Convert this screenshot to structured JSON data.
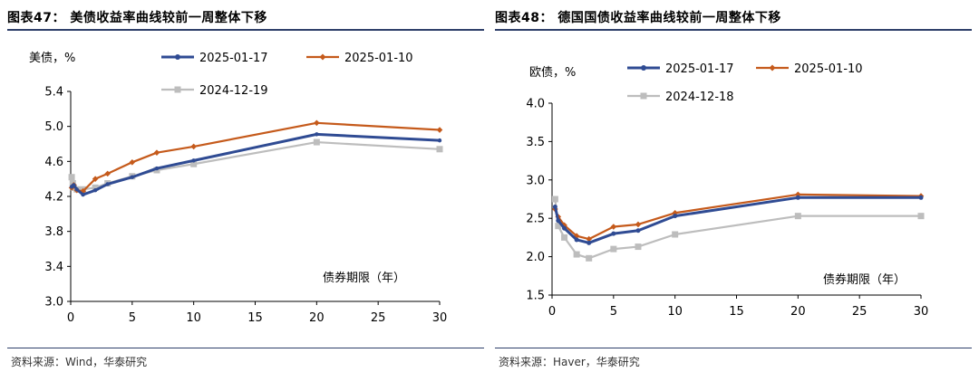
{
  "colors": {
    "accent": "#2e3f6a",
    "series_blue": "#2f4b93",
    "series_orange": "#c55a1b",
    "series_gray": "#bdbdbd"
  },
  "chart_data": [
    {
      "type": "line",
      "title": "图表47：  美债收益率曲线较前一周整体下移",
      "source": "资料来源：Wind，华泰研究",
      "ylabel": "美债，%",
      "xlabel": "债券期限（年）",
      "xlim": [
        0,
        30
      ],
      "ylim": [
        3.0,
        5.4
      ],
      "xticks": [
        0,
        5,
        10,
        15,
        20,
        25,
        30
      ],
      "yticks": [
        3.0,
        3.4,
        3.8,
        4.2,
        4.6,
        5.0,
        5.4
      ],
      "ytick_labels": [
        "3.0",
        "3.4",
        "3.8",
        "4.2",
        "4.6",
        "5.0",
        "5.4"
      ],
      "xtick_labels": [
        "0",
        "5",
        "10",
        "15",
        "20",
        "25",
        "30"
      ],
      "grid": false,
      "legend": "top",
      "series": [
        {
          "name": "2025-01-17",
          "color": "#2f4b93",
          "x": [
            0.08,
            0.17,
            0.25,
            0.5,
            1,
            2,
            3,
            5,
            7,
            10,
            20,
            30
          ],
          "y": [
            4.31,
            4.32,
            4.33,
            4.28,
            4.22,
            4.27,
            4.34,
            4.42,
            4.52,
            4.61,
            4.91,
            4.84
          ]
        },
        {
          "name": "2025-01-10",
          "color": "#c55a1b",
          "x": [
            0.08,
            0.17,
            0.25,
            0.5,
            1,
            2,
            3,
            5,
            7,
            10,
            20,
            30
          ],
          "y": [
            4.3,
            4.31,
            4.33,
            4.27,
            4.26,
            4.4,
            4.46,
            4.59,
            4.7,
            4.77,
            5.04,
            4.96
          ]
        },
        {
          "name": "2024-12-19",
          "color": "#bdbdbd",
          "x": [
            0.08,
            0.17,
            0.25,
            0.5,
            1,
            2,
            3,
            5,
            7,
            10,
            20,
            30
          ],
          "y": [
            4.42,
            4.35,
            4.3,
            4.28,
            4.28,
            4.3,
            4.35,
            4.43,
            4.5,
            4.57,
            4.82,
            4.74
          ]
        }
      ]
    },
    {
      "type": "line",
      "title": "图表48：  德国国债收益率曲线较前一周整体下移",
      "source": "资料来源：Haver，华泰研究",
      "ylabel": "欧债，%",
      "xlabel": "债券期限（年）",
      "xlim": [
        0,
        30
      ],
      "ylim": [
        1.5,
        4.0
      ],
      "xticks": [
        0,
        5,
        10,
        15,
        20,
        25,
        30
      ],
      "yticks": [
        1.5,
        2.0,
        2.5,
        3.0,
        3.5,
        4.0
      ],
      "ytick_labels": [
        "1.5",
        "2.0",
        "2.5",
        "3.0",
        "3.5",
        "4.0"
      ],
      "xtick_labels": [
        "0",
        "5",
        "10",
        "15",
        "20",
        "25",
        "30"
      ],
      "grid": false,
      "legend": "top",
      "series": [
        {
          "name": "2025-01-17",
          "color": "#2f4b93",
          "x": [
            0.25,
            0.5,
            1,
            2,
            3,
            5,
            7,
            10,
            20,
            30
          ],
          "y": [
            2.65,
            2.47,
            2.37,
            2.22,
            2.18,
            2.3,
            2.34,
            2.53,
            2.77,
            2.77
          ]
        },
        {
          "name": "2025-01-10",
          "color": "#c55a1b",
          "x": [
            0.25,
            0.5,
            1,
            2,
            3,
            5,
            7,
            10,
            20,
            30
          ],
          "y": [
            2.62,
            2.52,
            2.41,
            2.27,
            2.23,
            2.39,
            2.42,
            2.57,
            2.81,
            2.79
          ]
        },
        {
          "name": "2024-12-18",
          "color": "#bdbdbd",
          "x": [
            0.25,
            0.5,
            1,
            2,
            3,
            5,
            7,
            10,
            20,
            30
          ],
          "y": [
            2.75,
            2.4,
            2.25,
            2.03,
            1.98,
            2.1,
            2.13,
            2.29,
            2.53,
            2.53
          ]
        }
      ]
    }
  ]
}
